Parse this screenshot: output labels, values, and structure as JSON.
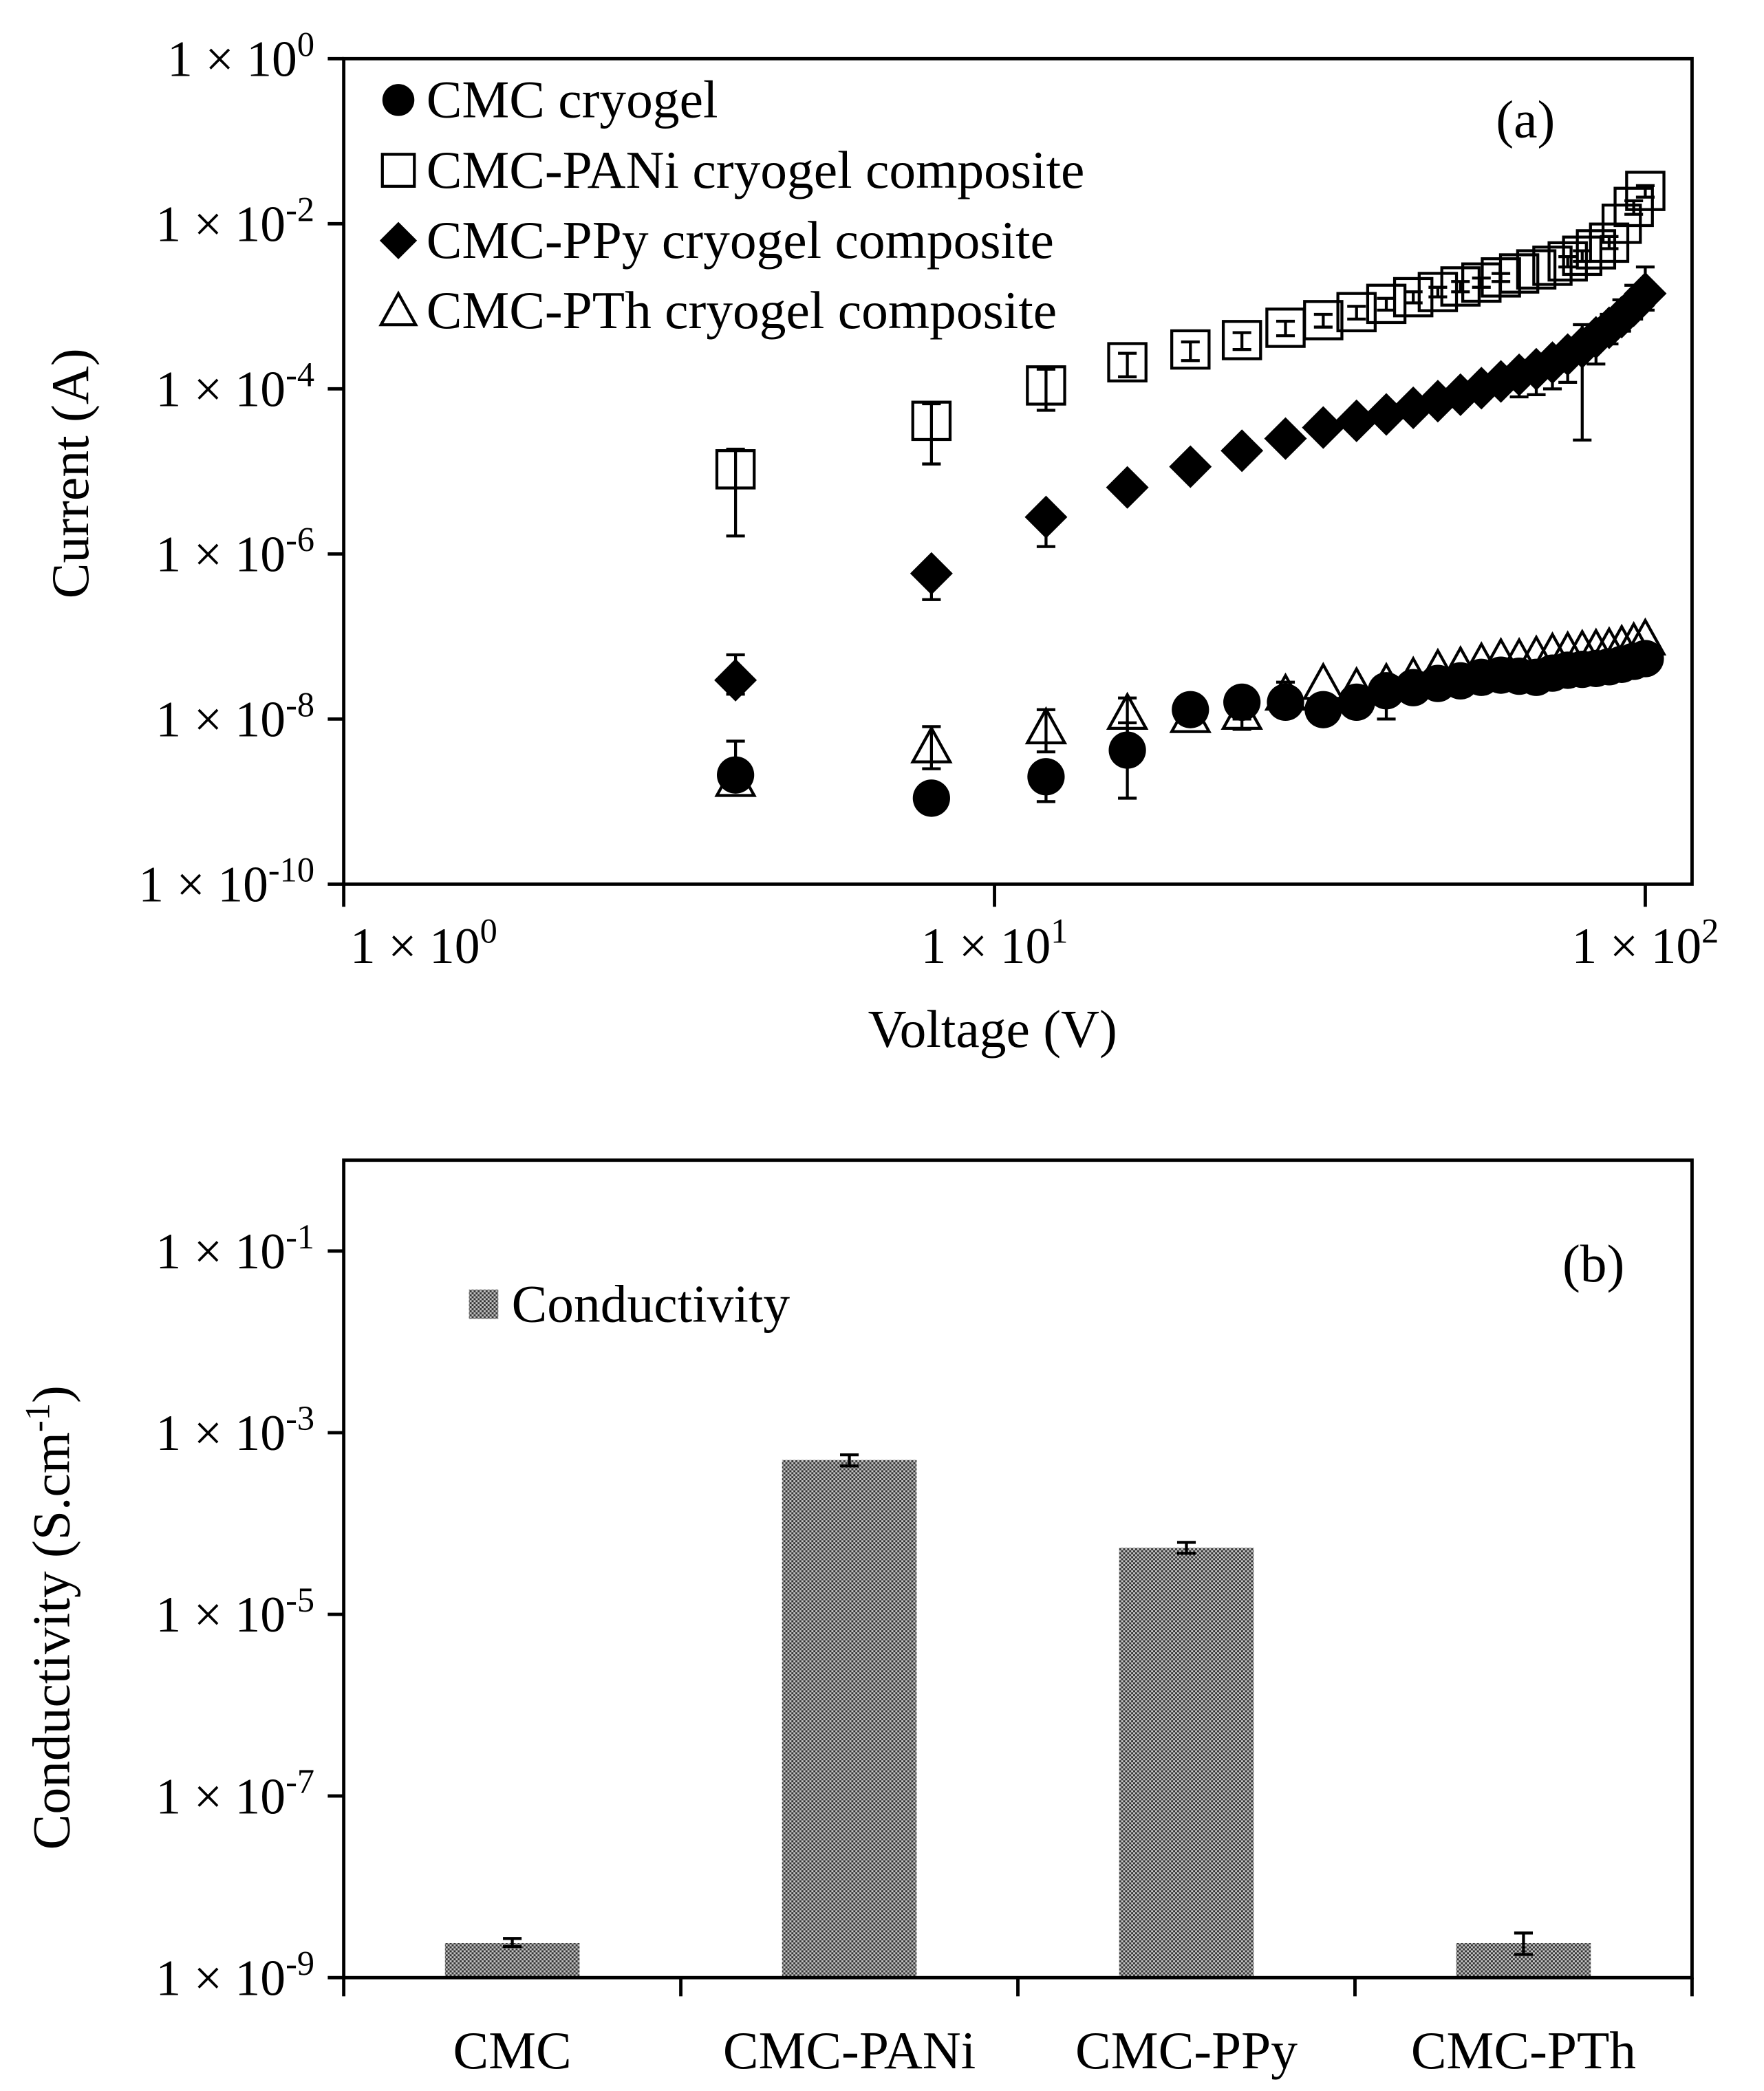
{
  "chart_data": [
    {
      "panel_label": "(a)",
      "type": "scatter",
      "xlabel": "Voltage (V)",
      "ylabel": "Current (A)",
      "log_x": true,
      "log_y": true,
      "xlim": [
        1,
        118
      ],
      "ylim": [
        1e-10,
        1
      ],
      "grid": false,
      "legend_position": "top-left",
      "xticks": [
        {
          "value": 1,
          "mantissa": "1 × 10",
          "exp": "0"
        },
        {
          "value": 10,
          "mantissa": "1 × 10",
          "exp": "1"
        },
        {
          "value": 100,
          "mantissa": "1 × 10",
          "exp": "2"
        }
      ],
      "yticks": [
        {
          "value": 1,
          "mantissa": "1 × 10",
          "exp": "0"
        },
        {
          "value": 0.01,
          "mantissa": "1 × 10",
          "exp": "-2"
        },
        {
          "value": 0.0001,
          "mantissa": "1 × 10",
          "exp": "-4"
        },
        {
          "value": 1e-06,
          "mantissa": "1 × 10",
          "exp": "-6"
        },
        {
          "value": 1e-08,
          "mantissa": "1 × 10",
          "exp": "-8"
        },
        {
          "value": 1e-10,
          "mantissa": "1 × 10",
          "exp": "-10"
        }
      ],
      "x": [
        4,
        8,
        12,
        16,
        20,
        24,
        28,
        32,
        36,
        40,
        44,
        48,
        52,
        56,
        60,
        64,
        68,
        72,
        76,
        80,
        84,
        88,
        92,
        96,
        100
      ],
      "series": [
        {
          "name": "CMC cryogel",
          "marker": "filled-circle",
          "y": [
            2.1e-09,
            1.1e-09,
            2e-09,
            4.2e-09,
            1.3e-08,
            1.6e-08,
            1.6e-08,
            1.3e-08,
            1.6e-08,
            2.2e-08,
            2.4e-08,
            2.7e-08,
            2.9e-08,
            3.2e-08,
            3.4e-08,
            3.3e-08,
            3.2e-08,
            3.6e-08,
            3.9e-08,
            4e-08,
            4.1e-08,
            4.3e-08,
            4.6e-08,
            5e-08,
            5.4e-08
          ],
          "yerr": [
            [
              1.6e-09,
              5.4e-09
            ],
            null,
            [
              1e-09,
              3e-09
            ],
            [
              1.1e-09,
              9e-09
            ],
            null,
            [
              1e-08,
              2e-08
            ],
            [
              1.2e-08,
              2.2e-08
            ],
            null,
            null,
            [
              1e-08,
              2.8e-08
            ],
            null,
            null,
            null,
            null,
            null,
            null,
            null,
            null,
            null,
            null,
            null,
            null,
            null,
            null,
            null
          ]
        },
        {
          "name": "CMC-PANi cryogel composite",
          "marker": "open-square",
          "y": [
            1.06e-05,
            4.1e-05,
            0.00011,
            0.00021,
            0.0003,
            0.00039,
            0.00055,
            0.00068,
            0.00085,
            0.00107,
            0.00129,
            0.00149,
            0.00174,
            0.00194,
            0.00224,
            0.0025,
            0.0028,
            0.0031,
            0.0035,
            0.0041,
            0.0049,
            0.0059,
            0.01,
            0.016,
            0.025
          ],
          "yerr": [
            [
              1.65e-06,
              1.86e-05
            ],
            [
              1.23e-05,
              6.6e-05
            ],
            [
              5.5e-05,
              0.000173
            ],
            [
              0.00014,
              0.00027
            ],
            [
              0.00022,
              0.00037
            ],
            [
              0.0003,
              0.00048
            ],
            [
              0.00044,
              0.00066
            ],
            [
              0.00056,
              0.0008
            ],
            [
              0.0007,
              0.001
            ],
            [
              0.0009,
              0.00125
            ],
            [
              0.0011,
              0.0015
            ],
            [
              0.0013,
              0.0017
            ],
            [
              0.0015,
              0.002
            ],
            [
              0.0017,
              0.0022
            ],
            [
              0.002,
              0.0025
            ],
            null,
            null,
            null,
            [
              0.003,
              0.004
            ],
            [
              0.0035,
              0.0047
            ],
            null,
            [
              0.005,
              0.007
            ],
            null,
            [
              0.013,
              0.019
            ],
            [
              0.021,
              0.029
            ]
          ]
        },
        {
          "name": "CMC-PPy cryogel composite",
          "marker": "filled-diamond",
          "y": [
            2.96e-08,
            5.8e-07,
            2.8e-06,
            6.4e-06,
            1.14e-05,
            1.78e-05,
            2.5e-05,
            3.4e-05,
            4.1e-05,
            4.9e-05,
            5.9e-05,
            7.1e-05,
            8.5e-05,
            0.000102,
            0.000123,
            0.000148,
            0.000173,
            0.000208,
            0.00026,
            0.00032,
            0.00042,
            0.00055,
            0.00074,
            0.00102,
            0.00143
          ],
          "yerr": [
            [
              2e-08,
              6e-08
            ],
            [
              2.8e-07,
              7.5e-07
            ],
            [
              1.23e-06,
              3.5e-06
            ],
            [
              5.2e-06,
              7.5e-06
            ],
            [
              9e-06,
              1.3e-05
            ],
            [
              1.4e-05,
              2e-05
            ],
            [
              2e-05,
              2.9e-05
            ],
            null,
            null,
            null,
            null,
            null,
            null,
            null,
            null,
            [
              8e-05,
              0.00018
            ],
            [
              8.5e-05,
              0.00022
            ],
            [
              0.0001,
              0.00026
            ],
            [
              0.00012,
              0.00032
            ],
            [
              2.4e-05,
              0.0006
            ],
            [
              0.0002,
              0.0006
            ],
            [
              0.00035,
              0.0008
            ],
            [
              0.0005,
              0.0012
            ],
            [
              0.0007,
              0.0018
            ],
            [
              0.0009,
              0.003
            ]
          ]
        },
        {
          "name": "CMC-PTh cryogel composite",
          "marker": "open-triangle",
          "y": [
            1.8e-09,
            4.6e-09,
            7.8e-09,
            1.17e-08,
            1.07e-08,
            1.17e-08,
            2e-08,
            2.7e-08,
            2.4e-08,
            2.7e-08,
            3.2e-08,
            4e-08,
            4.3e-08,
            4.8e-08,
            5.4e-08,
            5.4e-08,
            5.8e-08,
            6.3e-08,
            6.5e-08,
            6.8e-08,
            7e-08,
            7.3e-08,
            7.8e-08,
            8.4e-08,
            9.3e-08
          ],
          "yerr": [
            null,
            [
              2.5e-09,
              8.1e-09
            ],
            [
              4e-09,
              1.3e-08
            ],
            [
              5e-09,
              1.8e-08
            ],
            null,
            [
              7.5e-09,
              1.5e-08
            ],
            [
              1.5e-08,
              2.8e-08
            ],
            null,
            null,
            null,
            null,
            null,
            null,
            null,
            null,
            null,
            null,
            null,
            null,
            null,
            null,
            null,
            null,
            null,
            null
          ]
        }
      ]
    },
    {
      "panel_label": "(b)",
      "type": "bar",
      "log_y": true,
      "ylim": [
        1e-09,
        1
      ],
      "grid": false,
      "legend_position": "top-left",
      "ylabel": {
        "text": "Conductivity (S.cm",
        "sup": "-1",
        "tail": ")"
      },
      "yticks": [
        {
          "value": 0.1,
          "mantissa": "1 × 10",
          "exp": "-1"
        },
        {
          "value": 0.001,
          "mantissa": "1 × 10",
          "exp": "-3"
        },
        {
          "value": 1e-05,
          "mantissa": "1 × 10",
          "exp": "-5"
        },
        {
          "value": 1e-07,
          "mantissa": "1 × 10",
          "exp": "-7"
        },
        {
          "value": 1e-09,
          "mantissa": "1 × 10",
          "exp": "-9"
        }
      ],
      "categories": [
        "CMC",
        "CMC-PANi",
        "CMC-PPy",
        "CMC-PTh"
      ],
      "series": [
        {
          "name": "Conductivity",
          "values": [
            2.4e-09,
            0.0005,
            5.4e-05,
            2.4e-09
          ],
          "yerr": [
            [
              2.2e-09,
              2.7e-09
            ],
            [
              0.00043,
              0.00057
            ],
            [
              4.7e-05,
              6.2e-05
            ],
            [
              1.8e-09,
              3.1e-09
            ]
          ]
        }
      ]
    }
  ]
}
